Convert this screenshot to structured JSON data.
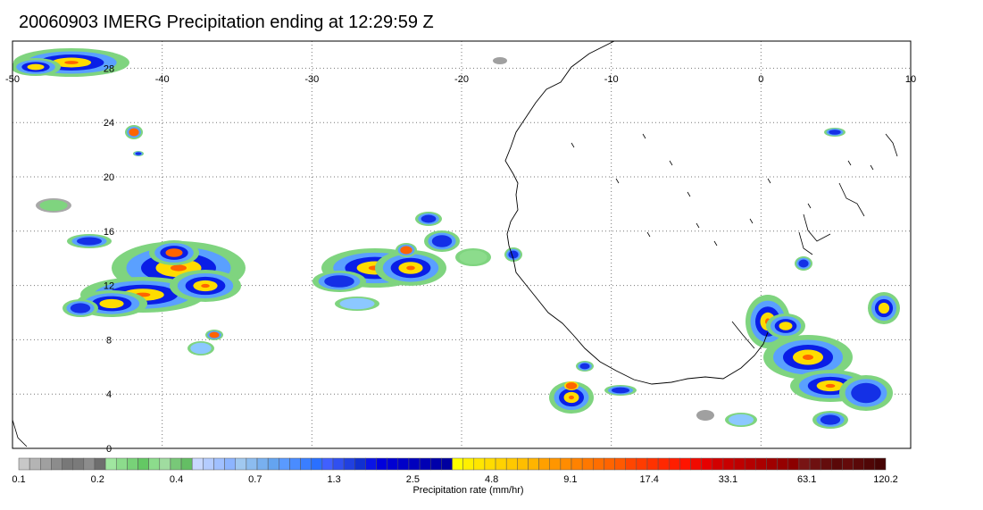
{
  "title": "20060903 IMERG Precipitation ending at 12:29:59 Z",
  "map": {
    "lon_range": [
      -50,
      10
    ],
    "lat_range": [
      0,
      30
    ],
    "lon_ticks": [
      "-50",
      "-40",
      "-30",
      "-20",
      "-10",
      "0",
      "10"
    ],
    "lat_ticks": [
      "28",
      "24",
      "20",
      "16",
      "12",
      "8",
      "4",
      "0"
    ],
    "lat_tick_values": [
      28,
      24,
      20,
      16,
      12,
      8,
      4,
      0
    ],
    "lon_tick_values": [
      -50,
      -40,
      -30,
      -20,
      -10,
      0,
      10
    ],
    "grid": true,
    "coastline_color": "#000000"
  },
  "colorbar": {
    "title": "Precipitation rate (mm/hr)",
    "labels": [
      "0.1",
      "0.2",
      "0.4",
      "0.7",
      "1.3",
      "2.5",
      "4.8",
      "9.1",
      "17.4",
      "33.1",
      "63.1",
      "120.2"
    ],
    "colors": [
      "#c8c8c8",
      "#b4b4b4",
      "#a0a0a0",
      "#8c8c8c",
      "#787878",
      "#7a7a7a",
      "#8c8c8c",
      "#6e6e6e",
      "#a0e6a0",
      "#8cdc8c",
      "#78d278",
      "#64c864",
      "#8cdc8c",
      "#a0dca0",
      "#78c878",
      "#64be64",
      "#c8d8ff",
      "#b4ccff",
      "#a0c0ff",
      "#8cb4ff",
      "#a0c8f0",
      "#8cbcf0",
      "#78b0f0",
      "#64a4f0",
      "#5a9aff",
      "#4a8cff",
      "#3a7eff",
      "#2a70ff",
      "#4060ff",
      "#3050f0",
      "#2040e0",
      "#1030d0",
      "#0a14e6",
      "#0000dc",
      "#0000d2",
      "#0000c8",
      "#0000be",
      "#0000b4",
      "#0000aa",
      "#0000a0",
      "#ffff00",
      "#fff000",
      "#ffe600",
      "#ffdc00",
      "#ffd200",
      "#ffc800",
      "#ffbe00",
      "#ffb400",
      "#ffa000",
      "#ff9600",
      "#ff8c00",
      "#ff8200",
      "#ff7800",
      "#ff6e00",
      "#ff6400",
      "#ff5a00",
      "#ff4600",
      "#ff3c00",
      "#ff3200",
      "#ff2800",
      "#ff1e00",
      "#ff1400",
      "#f00a00",
      "#e60000",
      "#d20000",
      "#c80000",
      "#be0000",
      "#b40000",
      "#aa0000",
      "#a00000",
      "#960000",
      "#8c0000",
      "#781414",
      "#6e1010",
      "#640c0c",
      "#5a0808",
      "#640a0a",
      "#5a0808",
      "#500606",
      "#460404"
    ]
  }
}
